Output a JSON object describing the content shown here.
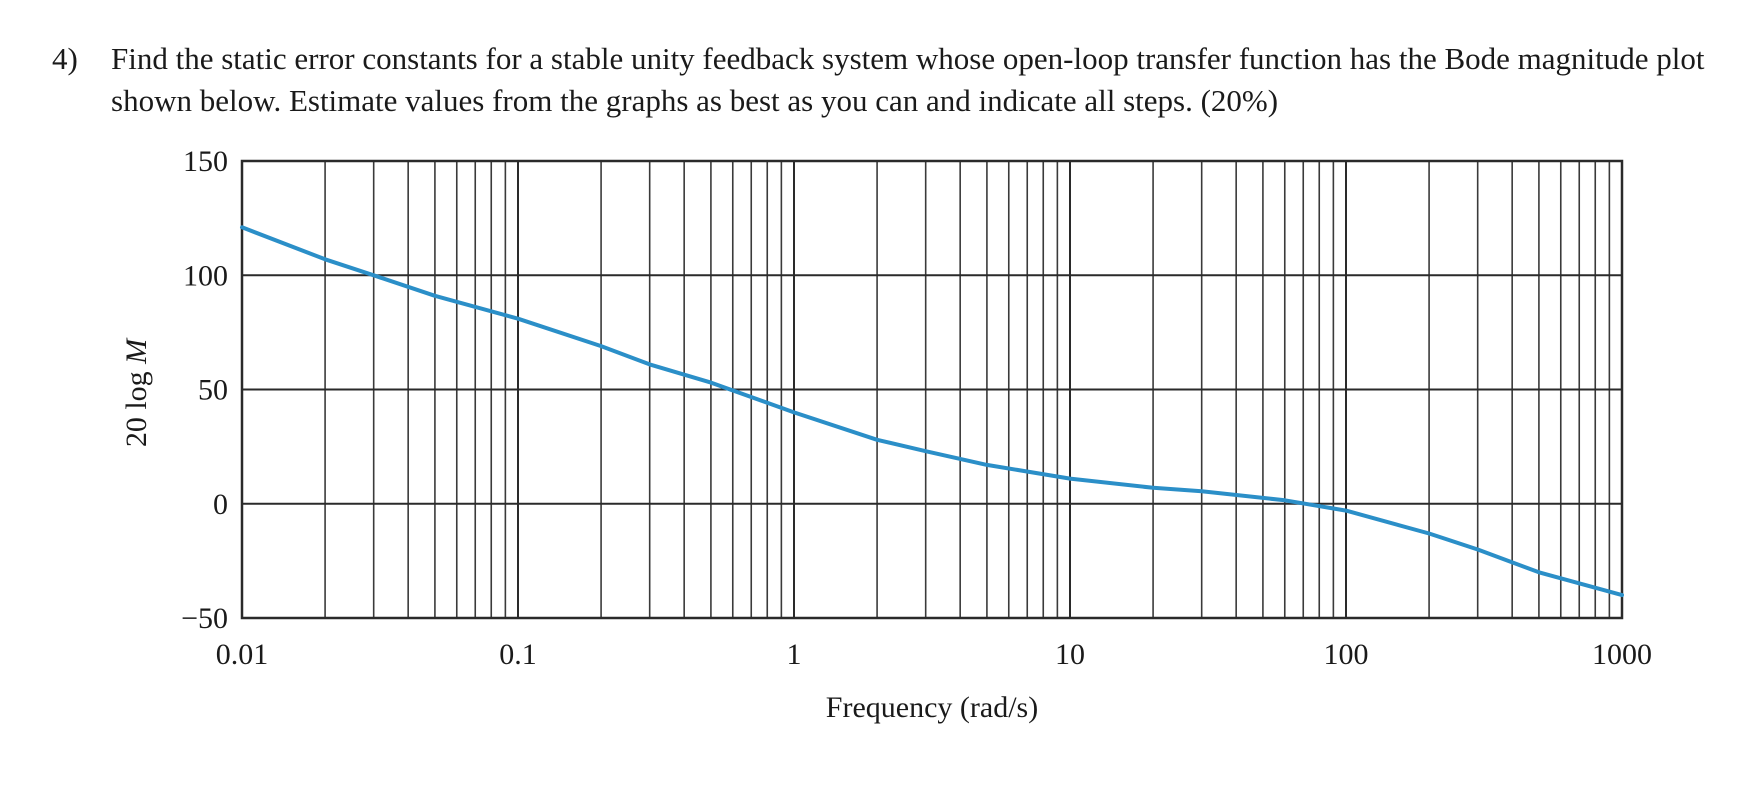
{
  "question": {
    "number": "4)",
    "text": "Find the static error constants for a stable unity feedback system whose open-loop transfer function has the Bode magnitude plot shown below. Estimate values from the graphs as best as you can and indicate all steps. (20%)"
  },
  "chart_data": {
    "type": "line",
    "title": "",
    "xlabel": "Frequency (rad/s)",
    "ylabel_prefix": "20 log ",
    "ylabel_var": "M",
    "x_scale": "log",
    "xlim": [
      0.01,
      1000
    ],
    "ylim": [
      -50,
      150
    ],
    "grid": true,
    "x_ticks": [
      {
        "value": 0.01,
        "label": "0.01"
      },
      {
        "value": 0.1,
        "label": "0.1"
      },
      {
        "value": 1,
        "label": "1"
      },
      {
        "value": 10,
        "label": "10"
      },
      {
        "value": 100,
        "label": "100"
      },
      {
        "value": 1000,
        "label": "1000"
      }
    ],
    "y_ticks": [
      {
        "value": 150,
        "label": "150"
      },
      {
        "value": 100,
        "label": "100"
      },
      {
        "value": 50,
        "label": "50"
      },
      {
        "value": 0,
        "label": "0"
      },
      {
        "value": -50,
        "label": "−50"
      }
    ],
    "series": [
      {
        "color": "#2b8fc8",
        "x": [
          0.01,
          0.02,
          0.03,
          0.05,
          0.1,
          0.2,
          0.3,
          0.5,
          1,
          2,
          3,
          5,
          10,
          20,
          30,
          60,
          100,
          200,
          300,
          500,
          1000
        ],
        "y": [
          121,
          107,
          100,
          91,
          81,
          69,
          61,
          53,
          40,
          28,
          23,
          17,
          11,
          7,
          5.5,
          1.5,
          -3,
          -13,
          -20,
          -30,
          -40
        ]
      }
    ]
  }
}
